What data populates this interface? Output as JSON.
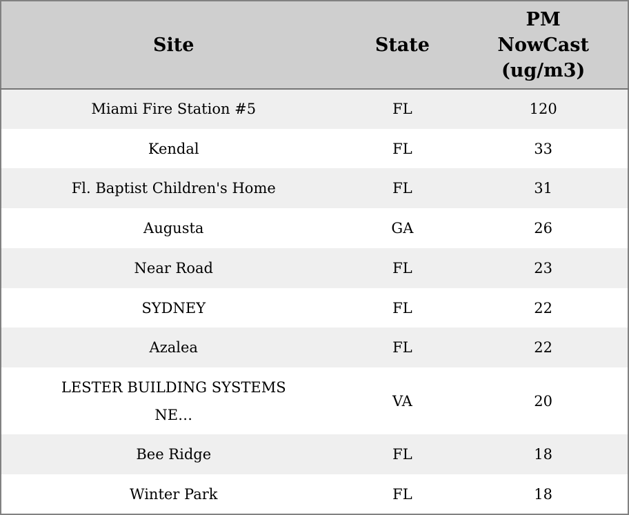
{
  "chart_data": {
    "type": "table",
    "title": "",
    "columns": [
      "Site",
      "State",
      "PM NowCast (ug/m3)"
    ],
    "rows": [
      [
        "Miami Fire Station #5",
        "FL",
        120
      ],
      [
        "Kendal",
        "FL",
        33
      ],
      [
        "Fl. Baptist Children's Home",
        "FL",
        31
      ],
      [
        "Augusta",
        "GA",
        26
      ],
      [
        "Near Road",
        "FL",
        23
      ],
      [
        "SYDNEY",
        "FL",
        22
      ],
      [
        "Azalea",
        "FL",
        22
      ],
      [
        "LESTER BUILDING SYSTEMS NE…",
        "VA",
        20
      ],
      [
        "Bee Ridge",
        "FL",
        18
      ],
      [
        "Winter Park",
        "FL",
        18
      ]
    ],
    "layout": {
      "striped": true,
      "stripe_pattern": "odd-rows-gray",
      "header_alignment": "center",
      "cell_alignment": "center"
    }
  },
  "colors": {
    "header_bg": "#cfcfcf",
    "row_stripe": "#efefef",
    "row_plain": "#ffffff",
    "outer_border": "#818181",
    "header_rule": "#757575",
    "text": "#000000"
  }
}
